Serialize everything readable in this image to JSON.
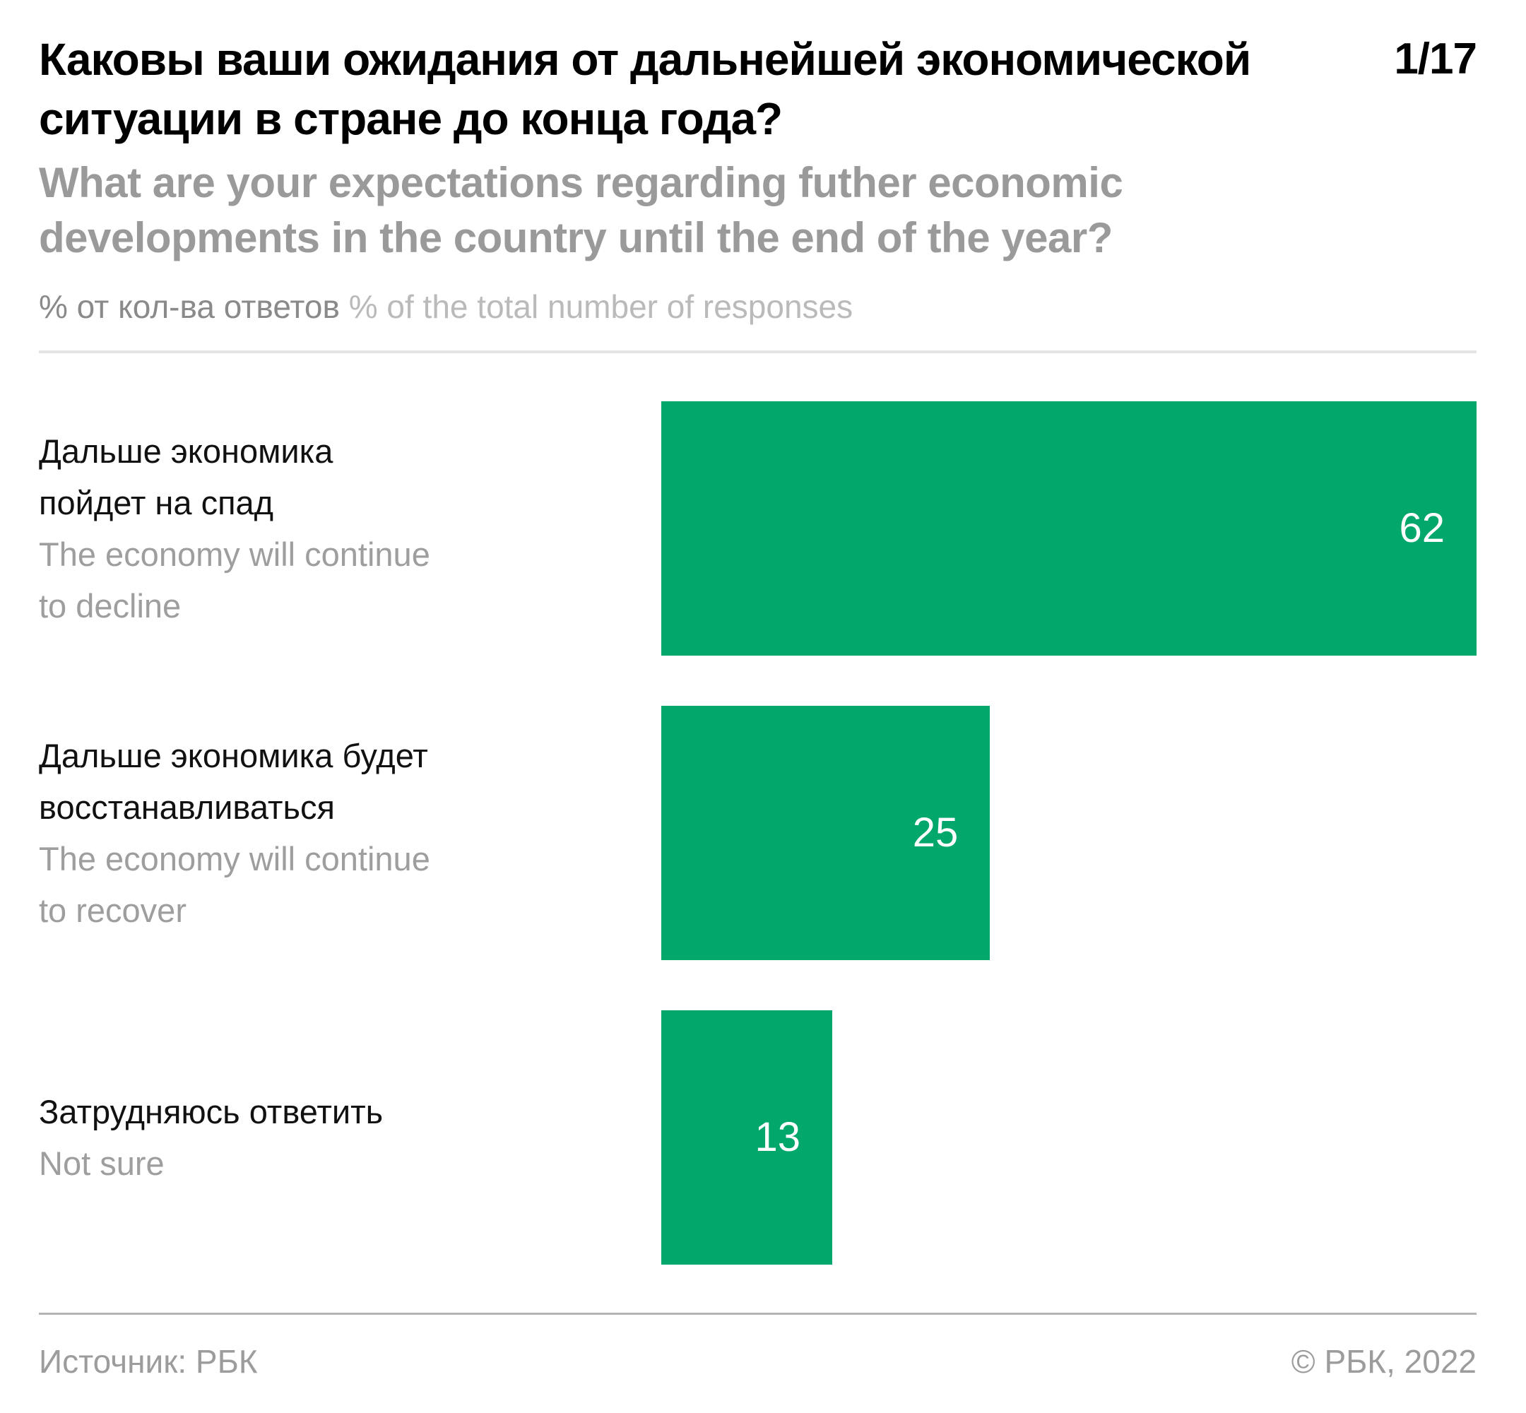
{
  "header": {
    "title_ru": "Каковы ваши ожидания от дальнейшей экономической\nситуации в стране до конца года?",
    "title_en": "What are your expectations regarding futher economic\ndevelopments in the country until the end of the year?",
    "page_indicator": "1/17",
    "unit_note_ru": "% от кол-ва ответов",
    "unit_note_en": " % of the total number of responses"
  },
  "chart_data": {
    "type": "bar",
    "orientation": "horizontal",
    "title": "Каковы ваши ожидания от дальнейшей экономической ситуации в стране до конца года?",
    "subtitle": "What are your expectations regarding futher economic developments in the country until the end of the year?",
    "unit": "% от кол-ва ответов / % of the total number of responses",
    "categories": [
      "Дальше экономика пойдет на спад",
      "Дальше экономика будет восстанавливаться",
      "Затрудняюсь ответить"
    ],
    "categories_en": [
      "The economy will continue to decline",
      "The economy will continue to recover",
      "Not sure"
    ],
    "values": [
      62,
      25,
      13
    ],
    "xlim": [
      0,
      62
    ],
    "grid": false,
    "legend": false,
    "bar_color": "#02a76c",
    "value_label_color": "#ffffff",
    "rows": [
      {
        "label_ru": "Дальше экономика\nпойдет на спад",
        "label_en": "The economy will continue\nto decline",
        "value": 62
      },
      {
        "label_ru": "Дальше экономика будет\nвосстанавливаться",
        "label_en": "The economy will continue\nto recover",
        "value": 25
      },
      {
        "label_ru": "Затрудняюсь ответить",
        "label_en": "Not sure",
        "value": 13
      }
    ]
  },
  "footer": {
    "source": "Источник: РБК",
    "copyright": "© РБК, 2022"
  },
  "colors": {
    "bar_green": "#02a76c",
    "title_black": "#000000",
    "subtitle_gray": "#9a9a9a",
    "label_en_gray": "#9e9e9e",
    "divider_light": "#e4e4e4",
    "divider_dark": "#b4b4b4",
    "footer_gray": "#9c9c9c"
  }
}
